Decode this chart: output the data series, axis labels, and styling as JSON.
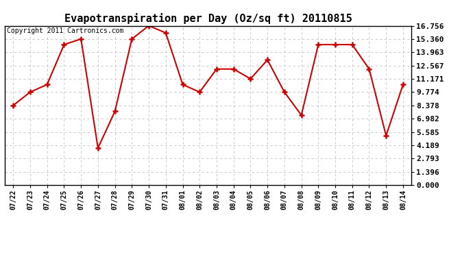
{
  "title": "Evapotranspiration per Day (Oz/sq ft) 20110815",
  "copyright": "Copyright 2011 Cartronics.com",
  "x_labels": [
    "07/22",
    "07/23",
    "07/24",
    "07/25",
    "07/26",
    "07/27",
    "07/28",
    "07/29",
    "07/30",
    "07/31",
    "08/01",
    "08/02",
    "08/03",
    "08/04",
    "08/05",
    "08/06",
    "08/07",
    "08/08",
    "08/09",
    "08/10",
    "08/11",
    "08/12",
    "08/13",
    "08/14"
  ],
  "y_values": [
    8.378,
    9.774,
    10.57,
    14.77,
    15.36,
    3.89,
    7.75,
    15.36,
    16.756,
    16.0,
    10.57,
    9.774,
    12.2,
    12.2,
    11.171,
    13.16,
    9.774,
    7.35,
    14.77,
    14.77,
    14.77,
    12.2,
    5.19,
    10.57
  ],
  "line_color": "#cc0000",
  "marker": "+",
  "marker_size": 6,
  "marker_color": "#cc0000",
  "background_color": "#ffffff",
  "grid_color": "#c0c0c0",
  "y_ticks": [
    0.0,
    1.396,
    2.793,
    4.189,
    5.585,
    6.982,
    8.378,
    9.774,
    11.171,
    12.567,
    13.963,
    15.36,
    16.756
  ],
  "ylim": [
    0.0,
    16.756
  ],
  "title_fontsize": 11,
  "copyright_fontsize": 7,
  "tick_fontsize": 8,
  "x_tick_fontsize": 7
}
